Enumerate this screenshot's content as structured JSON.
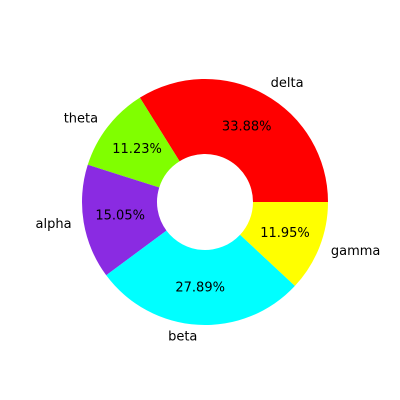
{
  "chart_data": {
    "type": "pie",
    "donut": true,
    "start_angle_deg": 0,
    "direction": "counterclockwise",
    "legend": "none",
    "slices": [
      {
        "label": "delta",
        "value": 33.88,
        "pct_label": "33.88%",
        "color": "#ff0000"
      },
      {
        "label": "theta",
        "value": 11.23,
        "pct_label": "11.23%",
        "color": "#80ff00"
      },
      {
        "label": "alpha",
        "value": 15.05,
        "pct_label": "15.05%",
        "color": "#8a2be2"
      },
      {
        "label": "beta",
        "value": 27.89,
        "pct_label": "27.89%",
        "color": "#00ffff"
      },
      {
        "label": "gamma",
        "value": 11.95,
        "pct_label": "11.95%",
        "color": "#ffff00"
      }
    ]
  }
}
